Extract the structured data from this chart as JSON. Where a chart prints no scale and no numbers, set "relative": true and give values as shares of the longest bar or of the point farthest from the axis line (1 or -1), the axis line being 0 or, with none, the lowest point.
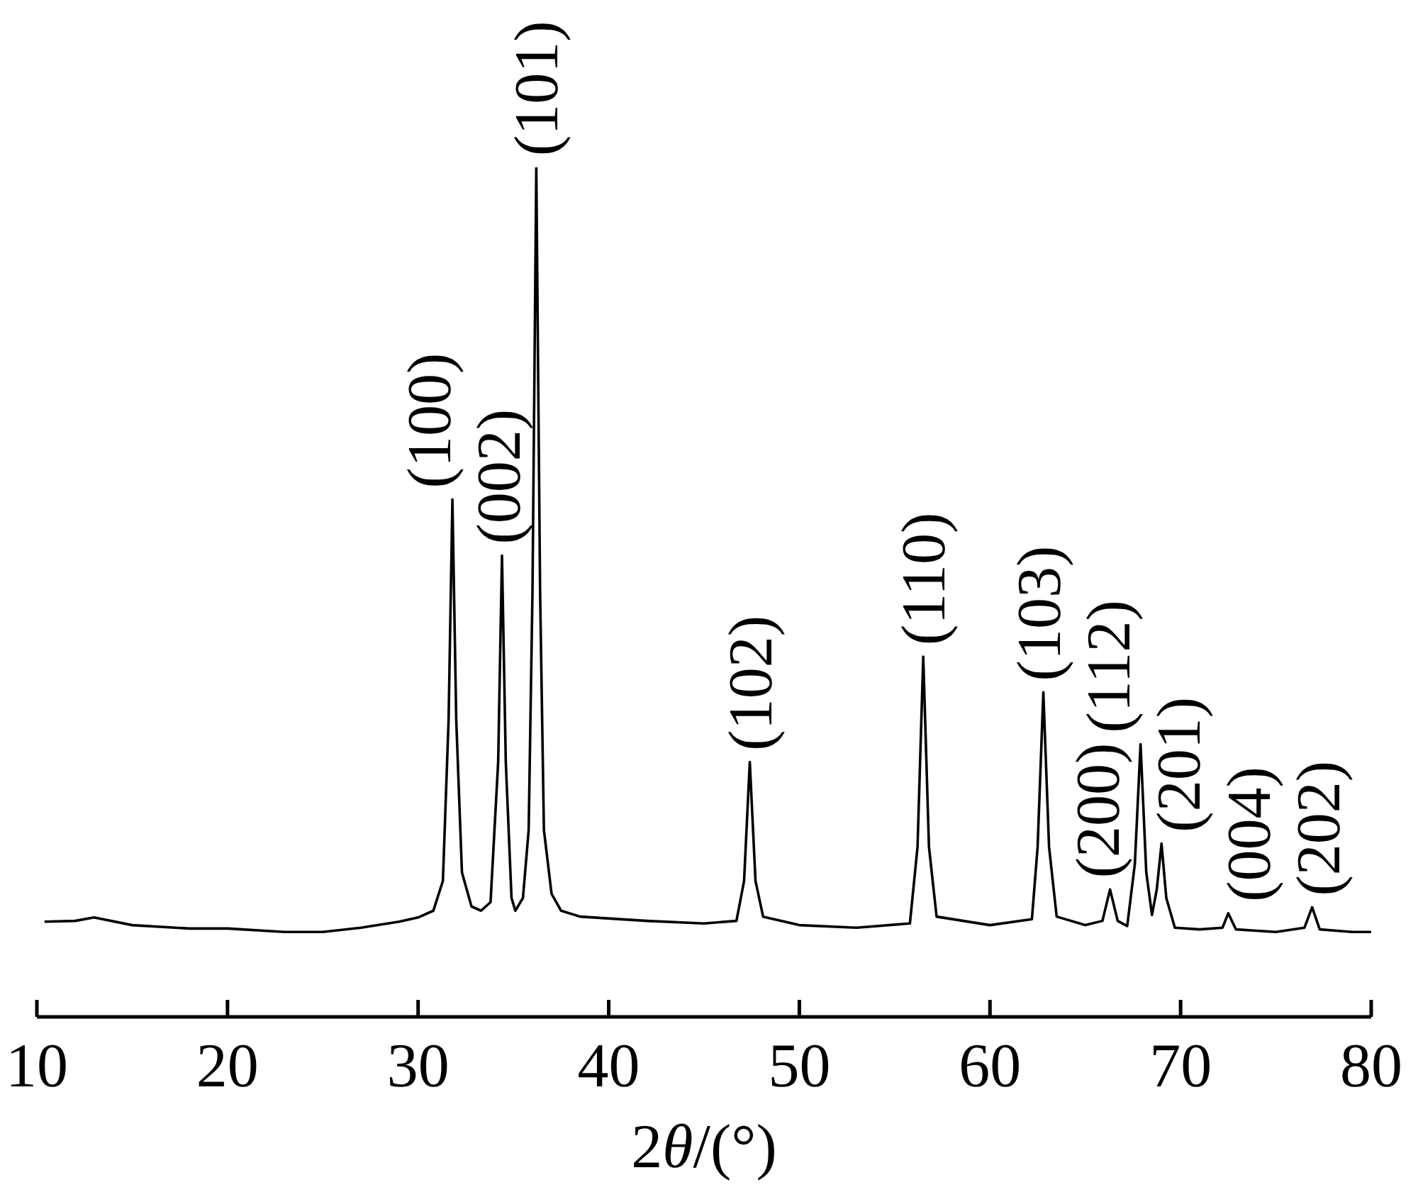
{
  "chart_data": {
    "type": "line",
    "relative": true,
    "xlabel": "2θ/(°)",
    "xlim": [
      10,
      80
    ],
    "xticks": [
      10,
      20,
      30,
      40,
      50,
      60,
      70,
      80
    ],
    "x": [
      10.4,
      12,
      13,
      15,
      18,
      20,
      23,
      25,
      27,
      29,
      30,
      30.8,
      31.3,
      31.6,
      31.8,
      32.0,
      32.3,
      32.8,
      33.3,
      33.8,
      34.2,
      34.4,
      34.6,
      34.9,
      35.1,
      35.5,
      35.8,
      36.0,
      36.2,
      36.4,
      36.6,
      37.0,
      37.5,
      38.5,
      42,
      45,
      46.7,
      47.1,
      47.4,
      47.7,
      48.1,
      50,
      53,
      55.8,
      56.2,
      56.5,
      56.8,
      57.2,
      60,
      62.2,
      62.5,
      62.8,
      63.1,
      63.5,
      65,
      65.9,
      66.3,
      66.7,
      67.2,
      67.6,
      67.9,
      68.2,
      68.5,
      68.75,
      69.0,
      69.25,
      69.7,
      71,
      72.2,
      72.5,
      72.9,
      75,
      76.5,
      76.9,
      77.3,
      79,
      80
    ],
    "series": [
      {
        "color": "#000000",
        "values": [
          0.112,
          0.113,
          0.117,
          0.108,
          0.104,
          0.104,
          0.1,
          0.1,
          0.105,
          0.112,
          0.117,
          0.125,
          0.16,
          0.35,
          0.609,
          0.35,
          0.17,
          0.13,
          0.125,
          0.135,
          0.3,
          0.543,
          0.3,
          0.14,
          0.125,
          0.14,
          0.22,
          0.5,
          1,
          0.5,
          0.22,
          0.145,
          0.125,
          0.118,
          0.113,
          0.11,
          0.113,
          0.16,
          0.3,
          0.16,
          0.118,
          0.108,
          0.105,
          0.11,
          0.2,
          0.424,
          0.2,
          0.118,
          0.108,
          0.115,
          0.2,
          0.382,
          0.2,
          0.118,
          0.108,
          0.113,
          0.15,
          0.113,
          0.107,
          0.18,
          0.321,
          0.17,
          0.12,
          0.15,
          0.204,
          0.14,
          0.105,
          0.103,
          0.105,
          0.122,
          0.103,
          0.1,
          0.105,
          0.129,
          0.103,
          0.1,
          0.1
        ]
      }
    ],
    "annotations": [
      {
        "text": "(100)",
        "x": 31.8,
        "y": 0.609
      },
      {
        "text": "(002)",
        "x": 34.4,
        "y": 0.543
      },
      {
        "text": "(101)",
        "x": 36.2,
        "y": 1
      },
      {
        "text": "(102)",
        "x": 47.4,
        "y": 0.3
      },
      {
        "text": "(110)",
        "x": 56.5,
        "y": 0.424
      },
      {
        "text": "(103)",
        "x": 62.8,
        "y": 0.382
      },
      {
        "text": "(200)",
        "x": 66.3,
        "y": 0.15
      },
      {
        "text": "(112)",
        "x": 67.9,
        "y": 0.321
      },
      {
        "text": "(201)",
        "x": 69.0,
        "y": 0.204
      },
      {
        "text": "(004)",
        "x": 72.5,
        "y": 0.122
      },
      {
        "text": "(202)",
        "x": 76.9,
        "y": 0.129
      }
    ]
  }
}
